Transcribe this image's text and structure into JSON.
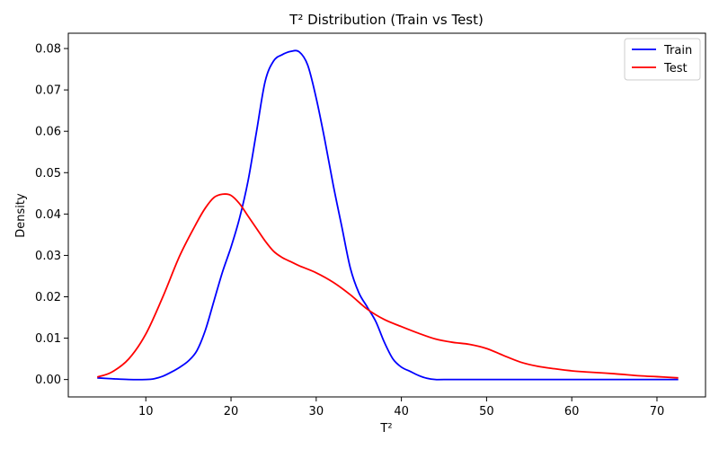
{
  "chart_data": {
    "type": "line",
    "title": "T² Distribution (Train vs Test)",
    "xlabel": "T²",
    "ylabel": "Density",
    "xlim": [
      0.9,
      75.7
    ],
    "ylim": [
      -0.0042,
      0.0837
    ],
    "xticks": [
      10,
      20,
      30,
      40,
      50,
      60,
      70
    ],
    "yticks": [
      0.0,
      0.01,
      0.02,
      0.03,
      0.04,
      0.05,
      0.06,
      0.07,
      0.08
    ],
    "ytick_labels": [
      "0.00",
      "0.01",
      "0.02",
      "0.03",
      "0.04",
      "0.05",
      "0.06",
      "0.07",
      "0.08"
    ],
    "grid": false,
    "legend_position": "top-right",
    "series": [
      {
        "name": "Train",
        "color": "#0000ff",
        "x": [
          4.3,
          6,
          8,
          10,
          11,
          12,
          13,
          14,
          15,
          16,
          17,
          18,
          19,
          20,
          21,
          22,
          23,
          24,
          25,
          26,
          27,
          28,
          29,
          30,
          31,
          32,
          33,
          34,
          35,
          36,
          37,
          38,
          39,
          40,
          41,
          42,
          43,
          44,
          45,
          50,
          55,
          60,
          65,
          70,
          72.5
        ],
        "y": [
          0.0004,
          0.0002,
          0.0,
          0.0,
          0.0002,
          0.0008,
          0.0018,
          0.003,
          0.0045,
          0.007,
          0.012,
          0.019,
          0.026,
          0.032,
          0.039,
          0.048,
          0.06,
          0.072,
          0.077,
          0.0785,
          0.0793,
          0.0792,
          0.076,
          0.068,
          0.058,
          0.047,
          0.037,
          0.027,
          0.021,
          0.0175,
          0.014,
          0.009,
          0.005,
          0.003,
          0.002,
          0.001,
          0.0003,
          0.0,
          0.0,
          0.0,
          0.0,
          0.0,
          0.0,
          0.0,
          0.0
        ]
      },
      {
        "name": "Test",
        "color": "#ff0000",
        "x": [
          4.3,
          6,
          8,
          10,
          12,
          14,
          16,
          17,
          18,
          19,
          20,
          21,
          22,
          23,
          24,
          25,
          26,
          27,
          28,
          30,
          32,
          34,
          36,
          38,
          40,
          42,
          44,
          46,
          48,
          50,
          52,
          54,
          56,
          58,
          60,
          62,
          65,
          68,
          70,
          72.5
        ],
        "y": [
          0.0006,
          0.0018,
          0.005,
          0.011,
          0.02,
          0.03,
          0.038,
          0.0415,
          0.044,
          0.0448,
          0.0445,
          0.0425,
          0.0395,
          0.0365,
          0.0335,
          0.031,
          0.0295,
          0.0285,
          0.0275,
          0.0258,
          0.0235,
          0.0205,
          0.017,
          0.0145,
          0.0128,
          0.0112,
          0.0098,
          0.009,
          0.0085,
          0.0075,
          0.0058,
          0.0042,
          0.0032,
          0.0026,
          0.0021,
          0.0018,
          0.0014,
          0.0009,
          0.0007,
          0.0004
        ]
      }
    ]
  }
}
